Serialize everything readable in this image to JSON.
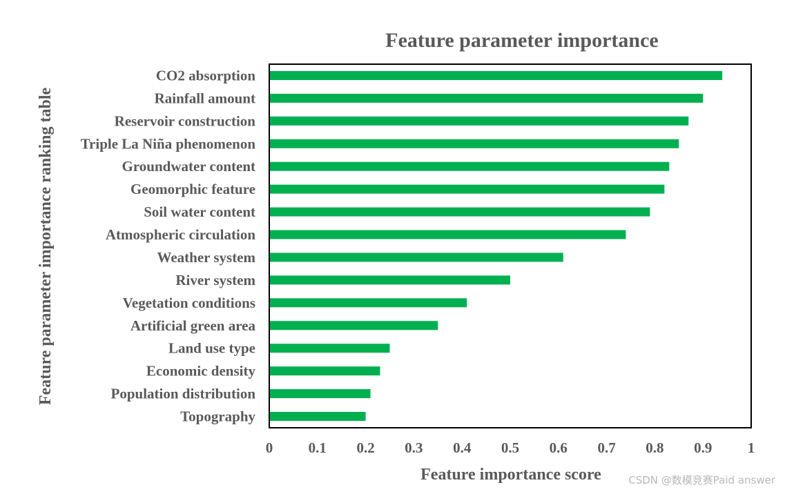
{
  "chart_data": {
    "type": "bar",
    "orientation": "horizontal",
    "title": "Feature parameter importance",
    "xlabel": "Feature importance score",
    "ylabel": "Feature parameter importance ranking table",
    "categories": [
      "CO2 absorption",
      "Rainfall amount",
      "Reservoir construction",
      "Triple La Niña phenomenon",
      "Groundwater content",
      "Geomorphic feature",
      "Soil water content",
      "Atmospheric circulation",
      "Weather system",
      "River system",
      "Vegetation conditions",
      "Artificial green area",
      "Land use type",
      "Economic density",
      "Population distribution",
      "Topography"
    ],
    "values": [
      0.94,
      0.9,
      0.87,
      0.85,
      0.83,
      0.82,
      0.79,
      0.74,
      0.61,
      0.5,
      0.41,
      0.35,
      0.25,
      0.23,
      0.21,
      0.2
    ],
    "xlim": [
      0,
      1
    ],
    "xticks": [
      "0",
      "0.1",
      "0.2",
      "0.3",
      "0.4",
      "0.5",
      "0.6",
      "0.7",
      "0.8",
      "0.9",
      "1"
    ],
    "grid": false,
    "bar_color": "#00b050"
  },
  "watermark": "CSDN @数模竞赛Paid answer"
}
